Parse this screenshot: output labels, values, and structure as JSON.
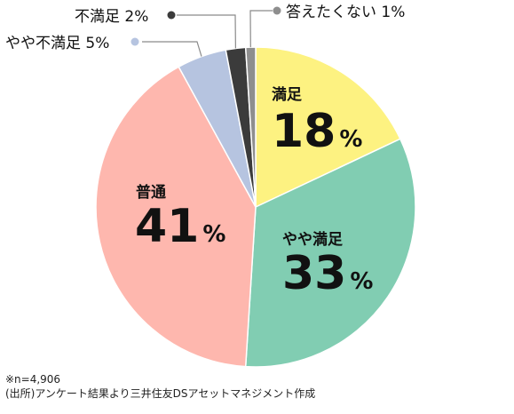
{
  "chart_data": {
    "type": "pie",
    "start": "12 o'clock",
    "direction": "clockwise",
    "slices": [
      {
        "label": "満足",
        "value": 18,
        "unit": "%",
        "color": "#fdf281",
        "label_style": "inside"
      },
      {
        "label": "やや満足",
        "value": 33,
        "unit": "%",
        "color": "#81cdb2",
        "label_style": "inside"
      },
      {
        "label": "普通",
        "value": 41,
        "unit": "%",
        "color": "#feb7ae",
        "label_style": "inside"
      },
      {
        "label": "やや不満足",
        "value": 5,
        "unit": "%",
        "color": "#b6c4e0",
        "label_style": "callout"
      },
      {
        "label": "不満足",
        "value": 2,
        "unit": "%",
        "color": "#3b3b3b",
        "label_style": "callout"
      },
      {
        "label": "答えたくない",
        "value": 1,
        "unit": "%",
        "color": "#8e8e8e",
        "label_style": "callout"
      }
    ]
  },
  "notes": {
    "sample": "※n=4,906",
    "source": "(出所)アンケート結果より三井住友DSアセットマネジメント作成"
  }
}
